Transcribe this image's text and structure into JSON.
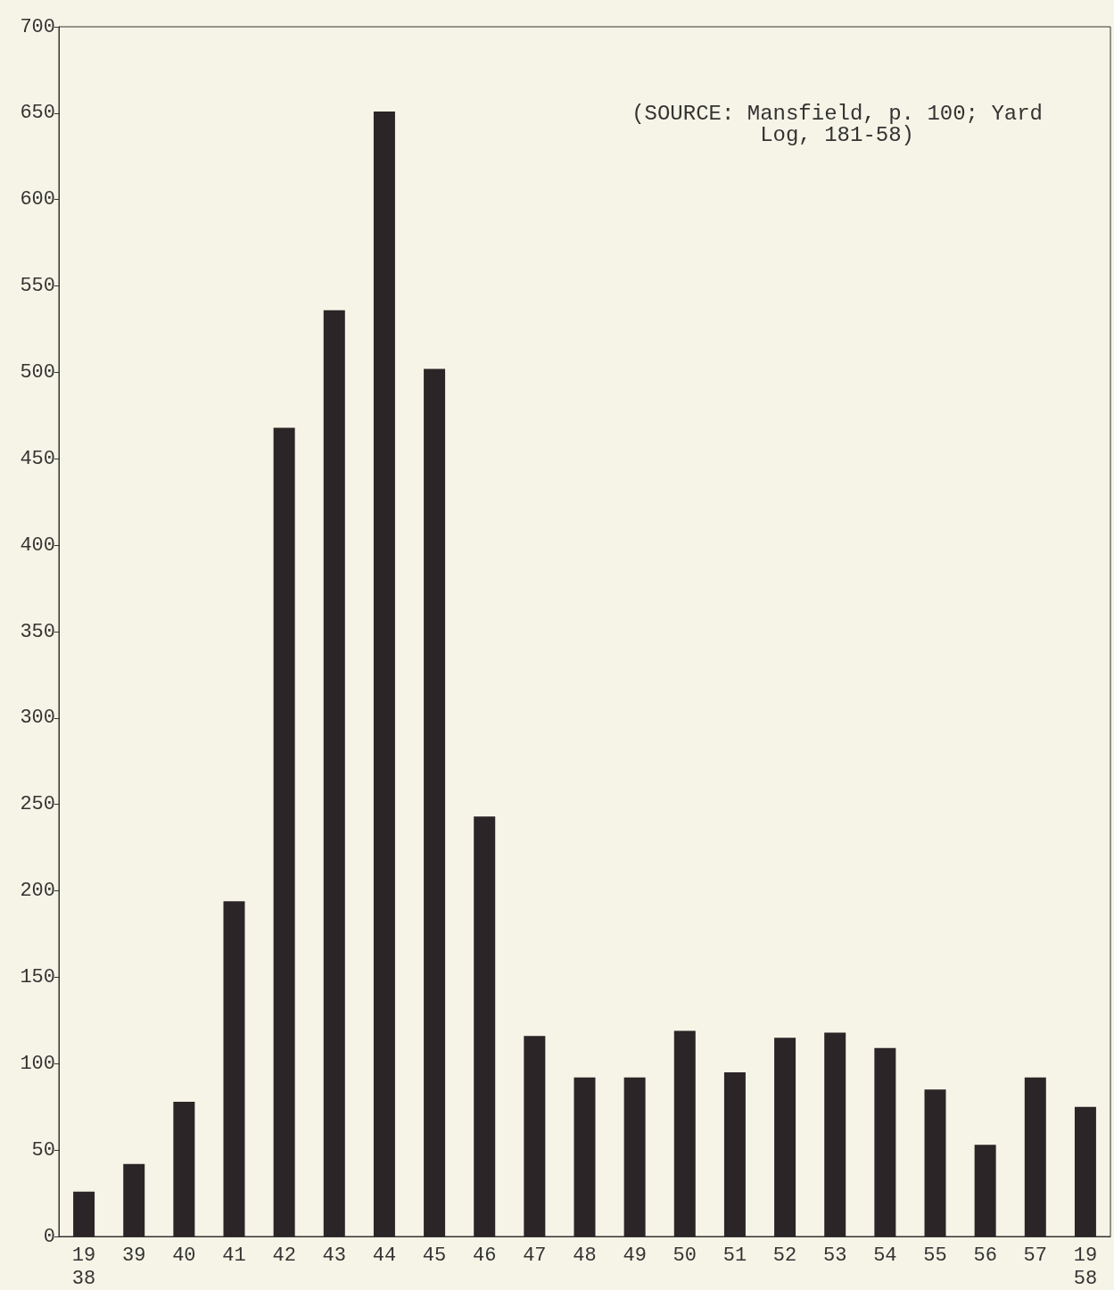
{
  "chart_data": {
    "type": "bar",
    "categories": [
      "19\n38",
      "39",
      "40",
      "41",
      "42",
      "43",
      "44",
      "45",
      "46",
      "47",
      "48",
      "49",
      "50",
      "51",
      "52",
      "53",
      "54",
      "55",
      "56",
      "57",
      "19\n58"
    ],
    "values": [
      26,
      42,
      78,
      194,
      468,
      536,
      651,
      502,
      243,
      116,
      92,
      92,
      119,
      95,
      115,
      118,
      109,
      85,
      53,
      92,
      75
    ],
    "color": "#2b2527",
    "ylim": [
      0,
      700
    ],
    "yticks": [
      0,
      50,
      100,
      150,
      200,
      250,
      300,
      350,
      400,
      450,
      500,
      550,
      600,
      650,
      700
    ],
    "grid": false,
    "annotations": [
      "(SOURCE: Mansfield, p. 100; Yard\nLog, 181-58)"
    ]
  }
}
